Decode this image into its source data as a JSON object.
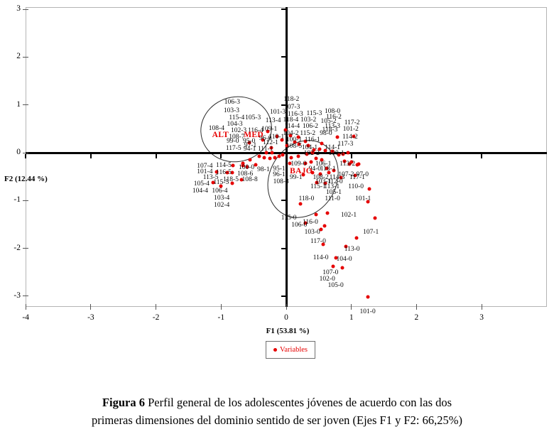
{
  "figure": {
    "caption_number": "Figura 6",
    "caption_line1": " Perfil general de los adolescentes jóvenes de acuerdo con las dos",
    "caption_line2": "primeras dimensiones del dominio sentido de ser joven (Ejes F1 y F2: 66,25%)"
  },
  "legend": {
    "label": "Variables"
  },
  "colors": {
    "point": "#e60000",
    "group_text": "#e60000",
    "axis": "#000000",
    "plot_border": "#b4b4b4"
  },
  "chart_data": {
    "type": "scatter",
    "xlabel": "F1 (53.81 %)",
    "ylabel": "F2 (12.44 %)",
    "xlim": [
      -4,
      4
    ],
    "ylim": [
      -3.2,
      3.05
    ],
    "x_ticks": [
      -4,
      -3,
      -2,
      -1,
      0,
      1,
      2,
      3
    ],
    "y_ticks": [
      3,
      2,
      1,
      0,
      -1,
      -2,
      -3
    ],
    "legend_entries": [
      "Variables"
    ],
    "legend_position": "bottom-center",
    "grid": false,
    "group_labels": [
      {
        "text": "ALT",
        "x": -1.01,
        "y": 0.37
      },
      {
        "text": "MED",
        "x": -0.5,
        "y": 0.37
      },
      {
        "text": "BAJO",
        "x": 0.23,
        "y": -0.39
      }
    ],
    "ellipses": [
      {
        "cx": -0.77,
        "cy": 0.49,
        "rx": 0.55,
        "ry": 0.68,
        "rotation": -15
      },
      {
        "cx": 0.26,
        "cy": -0.55,
        "rx": 0.52,
        "ry": 0.85,
        "rotation": 30
      }
    ],
    "point_labels": [
      [
        "106-3",
        -0.83,
        1.06
      ],
      [
        "103-3",
        -0.84,
        0.88
      ],
      [
        "115-4",
        -0.76,
        0.73
      ],
      [
        "105-3",
        -0.51,
        0.73
      ],
      [
        "104-3",
        -0.79,
        0.59
      ],
      [
        "102-3",
        -0.73,
        0.46
      ],
      [
        "116-4",
        -0.47,
        0.46
      ],
      [
        "108-4",
        -1.07,
        0.51
      ],
      [
        "108-7",
        -0.76,
        0.33
      ],
      [
        "109-1",
        -0.26,
        0.49
      ],
      [
        "99-0",
        -0.82,
        0.24
      ],
      [
        "95-0",
        -0.57,
        0.24
      ],
      [
        "96-0",
        -0.32,
        0.3
      ],
      [
        "110-1",
        -0.15,
        0.33
      ],
      [
        "97-1",
        -0.55,
        0.15
      ],
      [
        "117-5",
        -0.81,
        0.09
      ],
      [
        "94-1",
        -0.56,
        0.07
      ],
      [
        "112-1",
        -0.24,
        0.21
      ],
      [
        "111-1",
        -0.32,
        0.07
      ],
      [
        "118-2",
        0.08,
        1.11
      ],
      [
        "107-3",
        0.09,
        0.95
      ],
      [
        "101-3",
        -0.13,
        0.85
      ],
      [
        "116-3",
        0.14,
        0.8
      ],
      [
        "115-3",
        0.43,
        0.82
      ],
      [
        "108-0",
        0.71,
        0.86
      ],
      [
        "116-2",
        0.73,
        0.74
      ],
      [
        "113-4",
        -0.2,
        0.67
      ],
      [
        "118-4",
        0.07,
        0.68
      ],
      [
        "103-2",
        0.34,
        0.68
      ],
      [
        "105-2",
        0.65,
        0.65
      ],
      [
        "113-3",
        0.71,
        0.55
      ],
      [
        "117-2",
        1.01,
        0.62
      ],
      [
        "114-4",
        0.09,
        0.55
      ],
      [
        "106-2",
        0.37,
        0.55
      ],
      [
        "118-3",
        0.67,
        0.48
      ],
      [
        "101-2",
        0.99,
        0.49
      ],
      [
        "104-2",
        0.07,
        0.4
      ],
      [
        "115-2",
        0.33,
        0.4
      ],
      [
        "98-0",
        0.61,
        0.4
      ],
      [
        "114-2",
        0.98,
        0.33
      ],
      [
        "100-1",
        0.12,
        0.27
      ],
      [
        "116-1",
        0.4,
        0.27
      ],
      [
        "108-5",
        0.12,
        0.13
      ],
      [
        "104-1",
        0.36,
        0.1
      ],
      [
        "114-1",
        0.71,
        0.1
      ],
      [
        "117-3",
        0.91,
        0.18
      ],
      [
        "102-2",
        0.39,
        -0.01
      ],
      [
        "108-1",
        0.77,
        -0.01
      ],
      [
        "109-0",
        0.19,
        -0.24
      ],
      [
        "106-1",
        0.57,
        -0.24
      ],
      [
        "113-2",
        0.94,
        -0.24
      ],
      [
        "95-1",
        -0.11,
        -0.34
      ],
      [
        "94-0",
        0.44,
        -0.34
      ],
      [
        "118-1",
        0.64,
        -0.34
      ],
      [
        "96-1",
        -0.11,
        -0.46
      ],
      [
        "107-2",
        0.92,
        -0.46
      ],
      [
        "97-0",
        1.17,
        -0.46
      ],
      [
        "99-1",
        0.15,
        -0.52
      ],
      [
        "108-2",
        0.53,
        -0.52
      ],
      [
        "114-3",
        0.78,
        -0.52
      ],
      [
        "117-1",
        1.09,
        -0.52
      ],
      [
        "108-3",
        -0.08,
        -0.61
      ],
      [
        "103-1",
        0.57,
        -0.61
      ],
      [
        "112-0",
        0.75,
        -0.61
      ],
      [
        "115-1",
        0.49,
        -0.71
      ],
      [
        "113-1",
        0.7,
        -0.71
      ],
      [
        "110-0",
        1.07,
        -0.71
      ],
      [
        "105-1",
        0.73,
        -0.83
      ],
      [
        "118-0",
        0.31,
        -0.97
      ],
      [
        "111-0",
        0.71,
        -0.97
      ],
      [
        "101-1",
        1.18,
        -0.97
      ],
      [
        "107-4",
        -1.25,
        -0.28
      ],
      [
        "114-5",
        -0.96,
        -0.27
      ],
      [
        "100-0",
        -0.61,
        -0.31
      ],
      [
        "98-1",
        -0.35,
        -0.36
      ],
      [
        "101-4",
        -1.25,
        -0.4
      ],
      [
        "116-5",
        -0.96,
        -0.42
      ],
      [
        "108-6",
        -0.63,
        -0.45
      ],
      [
        "113-5",
        -1.16,
        -0.52
      ],
      [
        "118-5",
        -0.85,
        -0.56
      ],
      [
        "108-8",
        -0.56,
        -0.56
      ],
      [
        "105-4",
        -1.3,
        -0.65
      ],
      [
        "115-5",
        -1.0,
        -0.62
      ],
      [
        "104-4",
        -1.32,
        -0.8
      ],
      [
        "106-4",
        -1.02,
        -0.8
      ],
      [
        "103-4",
        -0.99,
        -0.95
      ],
      [
        "102-4",
        -0.99,
        -1.1
      ],
      [
        "115-0",
        0.04,
        -1.37
      ],
      [
        "102-1",
        0.96,
        -1.31
      ],
      [
        "106-0",
        0.2,
        -1.52
      ],
      [
        "116-0",
        0.37,
        -1.46
      ],
      [
        "103-0",
        0.4,
        -1.66
      ],
      [
        "107-1",
        1.3,
        -1.66
      ],
      [
        "117-0",
        0.49,
        -1.86
      ],
      [
        "113-0",
        1.01,
        -2.02
      ],
      [
        "114-0",
        0.53,
        -2.2
      ],
      [
        "104-0",
        0.89,
        -2.23
      ],
      [
        "107-0",
        0.68,
        -2.51
      ],
      [
        "102-0",
        0.63,
        -2.64
      ],
      [
        "105-0",
        0.76,
        -2.78
      ],
      [
        "101-0",
        1.25,
        -3.33
      ]
    ],
    "dots": [
      [
        -0.28,
        0.45
      ],
      [
        -0.14,
        0.34
      ],
      [
        -0.07,
        0.27
      ],
      [
        -0.57,
        0.21
      ],
      [
        -0.36,
        0.27
      ],
      [
        -0.23,
        0.1
      ],
      [
        -0.31,
        0.0
      ],
      [
        -0.22,
        0.0
      ],
      [
        -0.41,
        -0.07
      ],
      [
        -0.34,
        -0.1
      ],
      [
        -0.25,
        -0.12
      ],
      [
        -0.17,
        -0.1
      ],
      [
        -0.11,
        -0.07
      ],
      [
        -0.05,
        -0.04
      ],
      [
        -0.56,
        -0.15
      ],
      [
        -0.67,
        -0.22
      ],
      [
        -0.6,
        -0.3
      ],
      [
        -0.47,
        -0.25
      ],
      [
        -0.82,
        -0.27
      ],
      [
        -0.91,
        -0.42
      ],
      [
        -0.67,
        -0.27
      ],
      [
        -1.07,
        -0.4
      ],
      [
        -0.83,
        -0.42
      ],
      [
        -0.69,
        -0.56
      ],
      [
        -0.83,
        -0.64
      ],
      [
        -1.0,
        -0.7
      ],
      [
        -1.12,
        -0.62
      ],
      [
        -0.01,
        0.48
      ],
      [
        0.07,
        0.36
      ],
      [
        0.19,
        0.33
      ],
      [
        0.13,
        0.22
      ],
      [
        0.29,
        0.24
      ],
      [
        0.55,
        0.19
      ],
      [
        0.79,
        0.33
      ],
      [
        1.04,
        0.34
      ],
      [
        0.51,
        0.07
      ],
      [
        0.6,
        0.04
      ],
      [
        0.71,
        0.03
      ],
      [
        0.4,
        0.0
      ],
      [
        0.32,
        -0.03
      ],
      [
        0.81,
        -0.04
      ],
      [
        0.87,
        -0.03
      ],
      [
        0.95,
        0.0
      ],
      [
        0.19,
        -0.07
      ],
      [
        0.08,
        -0.1
      ],
      [
        0.46,
        -0.12
      ],
      [
        0.55,
        -0.15
      ],
      [
        0.89,
        -0.18
      ],
      [
        1.0,
        -0.19
      ],
      [
        0.38,
        -0.19
      ],
      [
        0.29,
        -0.22
      ],
      [
        1.09,
        -0.25
      ],
      [
        0.97,
        -0.24
      ],
      [
        1.11,
        -0.24
      ],
      [
        0.05,
        -0.22
      ],
      [
        0.62,
        -0.33
      ],
      [
        0.73,
        -0.37
      ],
      [
        0.4,
        -0.42
      ],
      [
        0.84,
        -0.52
      ],
      [
        1.06,
        -0.48
      ],
      [
        0.34,
        0.15
      ],
      [
        0.43,
        0.06
      ],
      [
        0.2,
        0.18
      ],
      [
        0.01,
        0.15
      ],
      [
        0.65,
        -0.42
      ],
      [
        0.52,
        -0.45
      ],
      [
        0.26,
        -0.46
      ],
      [
        0.47,
        -0.62
      ],
      [
        0.6,
        -0.64
      ],
      [
        0.22,
        -1.07
      ],
      [
        0.46,
        -1.29
      ],
      [
        0.63,
        -1.26
      ],
      [
        0.59,
        -1.53
      ],
      [
        0.29,
        -1.47
      ],
      [
        0.53,
        -1.6
      ],
      [
        1.25,
        -1.03
      ],
      [
        1.28,
        -0.76
      ],
      [
        1.36,
        -1.37
      ],
      [
        0.57,
        -1.92
      ],
      [
        0.92,
        -1.96
      ],
      [
        0.76,
        -2.2
      ],
      [
        0.72,
        -2.38
      ],
      [
        0.86,
        -2.41
      ],
      [
        1.08,
        -1.78
      ],
      [
        1.25,
        -3.02
      ]
    ]
  }
}
